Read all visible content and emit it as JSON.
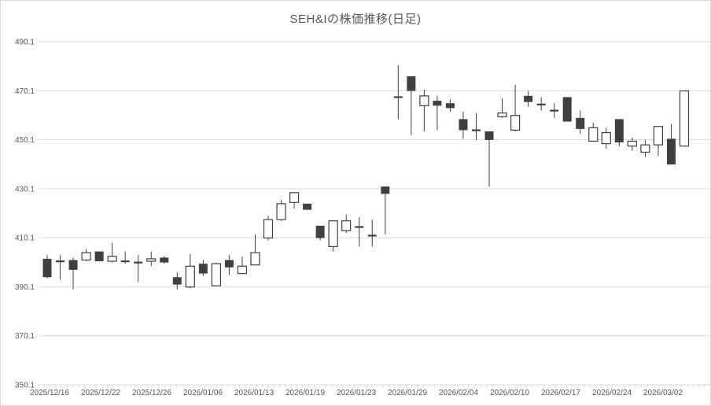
{
  "chart_data": {
    "type": "candlestick",
    "title": "SEH&Iの株価推移(日足)",
    "legend": "none",
    "grid": "horizontal",
    "y_axis": {
      "min": 350.1,
      "max": 490.1,
      "step": 20,
      "tick_labels": [
        "490.1",
        "470.1",
        "450.1",
        "430.1",
        "410.1",
        "390.1",
        "370.1",
        "350.1"
      ]
    },
    "x_axis": {
      "tick_labels": [
        "2025/12/16",
        "2025/12/22",
        "2025/12/26",
        "2026/01/06",
        "2026/01/13",
        "2026/01/19",
        "2026/01/23",
        "2026/01/29",
        "2026/02/04",
        "2026/02/10",
        "2026/02/17",
        "2026/02/24",
        "2026/03/02"
      ],
      "labels_every_n_candles": 4
    },
    "candles": [
      {
        "o": 401.5,
        "h": 403.0,
        "l": 393.5,
        "c": 394.0
      },
      {
        "o": 400.5,
        "h": 403.0,
        "l": 393.0,
        "c": 400.5
      },
      {
        "o": 401.0,
        "h": 402.0,
        "l": 389.0,
        "c": 397.0
      },
      {
        "o": 401.0,
        "h": 405.5,
        "l": 400.5,
        "c": 404.0
      },
      {
        "o": 404.5,
        "h": 404.5,
        "l": 400.5,
        "c": 400.5
      },
      {
        "o": 400.5,
        "h": 408.0,
        "l": 400.0,
        "c": 402.5
      },
      {
        "o": 400.5,
        "h": 404.5,
        "l": 399.5,
        "c": 400.5
      },
      {
        "o": 400.0,
        "h": 403.0,
        "l": 392.0,
        "c": 400.0
      },
      {
        "o": 400.5,
        "h": 404.5,
        "l": 398.5,
        "c": 401.5
      },
      {
        "o": 402.0,
        "h": 402.5,
        "l": 399.5,
        "c": 400.0
      },
      {
        "o": 394.0,
        "h": 396.0,
        "l": 389.0,
        "c": 391.0
      },
      {
        "o": 390.0,
        "h": 403.5,
        "l": 389.5,
        "c": 398.5
      },
      {
        "o": 399.5,
        "h": 401.0,
        "l": 394.5,
        "c": 395.5
      },
      {
        "o": 390.5,
        "h": 400.0,
        "l": 390.5,
        "c": 399.5
      },
      {
        "o": 401.0,
        "h": 403.0,
        "l": 395.0,
        "c": 398.0
      },
      {
        "o": 395.5,
        "h": 402.5,
        "l": 395.5,
        "c": 398.5
      },
      {
        "o": 399.0,
        "h": 411.5,
        "l": 399.0,
        "c": 404.0
      },
      {
        "o": 410.0,
        "h": 419.0,
        "l": 409.0,
        "c": 417.5
      },
      {
        "o": 417.5,
        "h": 425.5,
        "l": 417.0,
        "c": 424.0
      },
      {
        "o": 424.5,
        "h": 428.5,
        "l": 422.0,
        "c": 428.5
      },
      {
        "o": 424.0,
        "h": 424.0,
        "l": 421.5,
        "c": 421.5
      },
      {
        "o": 415.0,
        "h": 415.0,
        "l": 409.0,
        "c": 410.0
      },
      {
        "o": 406.5,
        "h": 417.0,
        "l": 404.5,
        "c": 417.0
      },
      {
        "o": 413.0,
        "h": 419.5,
        "l": 412.0,
        "c": 417.0
      },
      {
        "o": 414.5,
        "h": 418.5,
        "l": 406.5,
        "c": 414.5
      },
      {
        "o": 411.0,
        "h": 417.5,
        "l": 406.5,
        "c": 411.0
      },
      {
        "o": 431.0,
        "h": 431.0,
        "l": 411.5,
        "c": 428.0
      },
      {
        "o": 467.5,
        "h": 480.5,
        "l": 458.5,
        "c": 467.5
      },
      {
        "o": 476.0,
        "h": 476.0,
        "l": 452.0,
        "c": 470.0
      },
      {
        "o": 464.0,
        "h": 470.5,
        "l": 453.5,
        "c": 468.0
      },
      {
        "o": 466.0,
        "h": 468.0,
        "l": 454.0,
        "c": 464.0
      },
      {
        "o": 465.0,
        "h": 466.5,
        "l": 461.5,
        "c": 463.0
      },
      {
        "o": 458.5,
        "h": 461.5,
        "l": 450.5,
        "c": 454.0
      },
      {
        "o": 454.0,
        "h": 461.0,
        "l": 450.0,
        "c": 454.0
      },
      {
        "o": 453.5,
        "h": 453.5,
        "l": 431.0,
        "c": 450.0
      },
      {
        "o": 459.5,
        "h": 467.0,
        "l": 459.0,
        "c": 461.0
      },
      {
        "o": 454.0,
        "h": 472.5,
        "l": 453.5,
        "c": 460.0
      },
      {
        "o": 468.0,
        "h": 470.0,
        "l": 463.5,
        "c": 465.5
      },
      {
        "o": 464.5,
        "h": 467.5,
        "l": 462.0,
        "c": 464.5
      },
      {
        "o": 462.0,
        "h": 465.0,
        "l": 459.0,
        "c": 462.0
      },
      {
        "o": 467.5,
        "h": 467.5,
        "l": 457.5,
        "c": 457.5
      },
      {
        "o": 459.0,
        "h": 462.0,
        "l": 452.5,
        "c": 454.5
      },
      {
        "o": 449.5,
        "h": 457.0,
        "l": 449.5,
        "c": 455.0
      },
      {
        "o": 448.5,
        "h": 455.0,
        "l": 446.5,
        "c": 453.0
      },
      {
        "o": 458.5,
        "h": 458.5,
        "l": 447.5,
        "c": 449.0
      },
      {
        "o": 447.5,
        "h": 451.0,
        "l": 445.5,
        "c": 449.5
      },
      {
        "o": 445.0,
        "h": 450.0,
        "l": 443.0,
        "c": 448.0
      },
      {
        "o": 448.0,
        "h": 455.5,
        "l": 443.5,
        "c": 455.5
      },
      {
        "o": 450.5,
        "h": 456.5,
        "l": 440.0,
        "c": 440.0
      },
      {
        "o": 447.5,
        "h": 470.0,
        "l": 447.5,
        "c": 470.0
      }
    ],
    "colors": {
      "up_fill": "#ffffff",
      "down_fill": "#404040",
      "outline": "#404040",
      "wick": "#404040",
      "grid": "#d9d9d9",
      "axis_text": "#595959",
      "title_text": "#595959"
    }
  }
}
